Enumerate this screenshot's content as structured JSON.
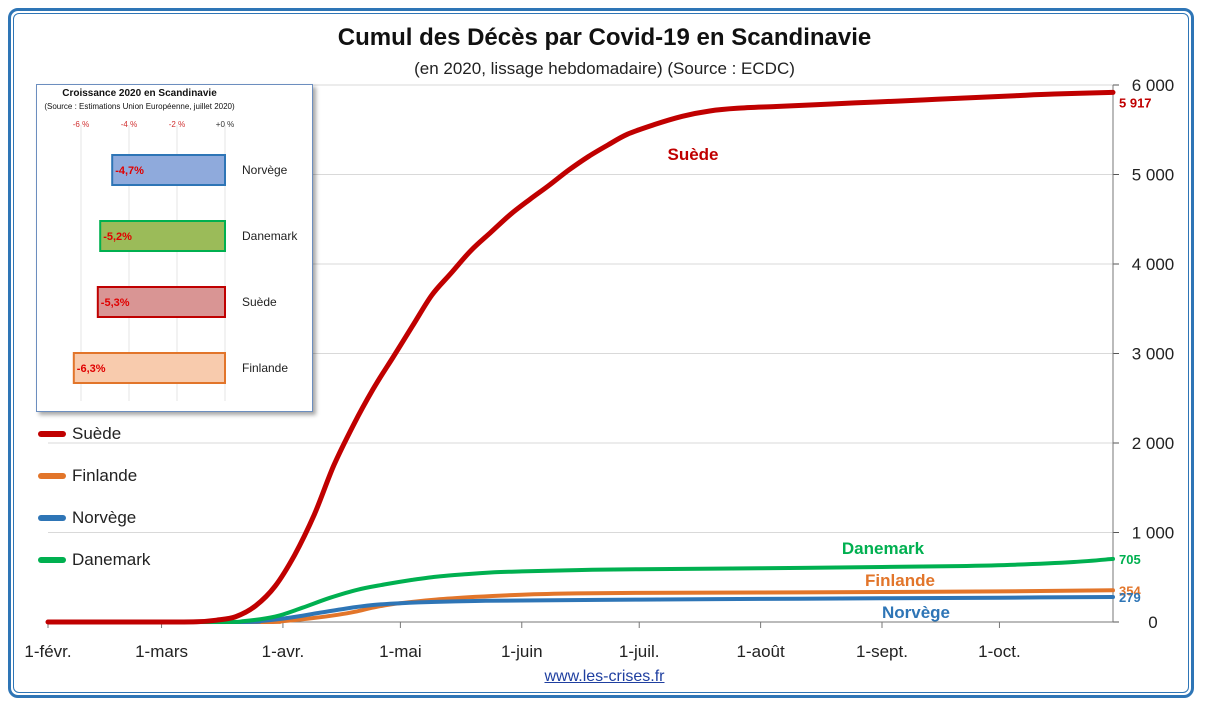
{
  "title": "Cumul des Décès par Covid-19 en Scandinavie",
  "subtitle": "(en 2020, lissage hebdomadaire) (Source : ECDC)",
  "source_link": "www.les-crises.fr",
  "colors": {
    "frame": "#2e75b6",
    "grid": "#d9d9d9"
  },
  "chart_data": [
    {
      "type": "line",
      "title": "Cumul des Décès par Covid-19 en Scandinavie",
      "subtitle": "(en 2020, lissage hebdomadaire) (Source : ECDC)",
      "x_tick_labels": [
        "1-févr.",
        "1-mars",
        "1-avr.",
        "1-mai",
        "1-juin",
        "1-juil.",
        "1-août",
        "1-sept.",
        "1-oct."
      ],
      "x_tick_dates": [
        "2020-02-01",
        "2020-03-01",
        "2020-04-01",
        "2020-05-01",
        "2020-06-01",
        "2020-07-01",
        "2020-08-01",
        "2020-09-01",
        "2020-10-01"
      ],
      "xlim": [
        "2020-02-01",
        "2020-10-30"
      ],
      "ylim": [
        0,
        6000
      ],
      "y_ticks": [
        0,
        1000,
        2000,
        3000,
        4000,
        5000,
        6000
      ],
      "y_tick_labels": [
        "0",
        "1 000",
        "2 000",
        "3 000",
        "4 000",
        "5 000",
        "6 000"
      ],
      "y_axis_side": "right",
      "grid": true,
      "legend": "left",
      "series": [
        {
          "name": "Suède",
          "color": "#c00000",
          "end_label": "5 917",
          "line_label": "Suède",
          "points": [
            [
              "2020-02-01",
              0
            ],
            [
              "2020-03-01",
              0
            ],
            [
              "2020-03-10",
              2
            ],
            [
              "2020-03-15",
              20
            ],
            [
              "2020-03-20",
              60
            ],
            [
              "2020-03-25",
              180
            ],
            [
              "2020-03-30",
              400
            ],
            [
              "2020-04-04",
              750
            ],
            [
              "2020-04-09",
              1200
            ],
            [
              "2020-04-14",
              1750
            ],
            [
              "2020-04-19",
              2200
            ],
            [
              "2020-04-24",
              2600
            ],
            [
              "2020-04-29",
              2950
            ],
            [
              "2020-05-04",
              3300
            ],
            [
              "2020-05-09",
              3650
            ],
            [
              "2020-05-14",
              3900
            ],
            [
              "2020-05-19",
              4150
            ],
            [
              "2020-05-24",
              4350
            ],
            [
              "2020-05-29",
              4550
            ],
            [
              "2020-06-03",
              4720
            ],
            [
              "2020-06-08",
              4880
            ],
            [
              "2020-06-13",
              5050
            ],
            [
              "2020-06-18",
              5200
            ],
            [
              "2020-06-23",
              5330
            ],
            [
              "2020-06-28",
              5450
            ],
            [
              "2020-07-05",
              5560
            ],
            [
              "2020-07-12",
              5650
            ],
            [
              "2020-07-19",
              5710
            ],
            [
              "2020-07-26",
              5740
            ],
            [
              "2020-08-05",
              5760
            ],
            [
              "2020-08-15",
              5780
            ],
            [
              "2020-08-25",
              5800
            ],
            [
              "2020-09-05",
              5820
            ],
            [
              "2020-09-15",
              5840
            ],
            [
              "2020-09-25",
              5860
            ],
            [
              "2020-10-05",
              5880
            ],
            [
              "2020-10-15",
              5900
            ],
            [
              "2020-10-30",
              5917
            ]
          ]
        },
        {
          "name": "Finlande",
          "color": "#e2752a",
          "end_label": "354",
          "line_label": "Finlande",
          "points": [
            [
              "2020-02-01",
              0
            ],
            [
              "2020-03-25",
              0
            ],
            [
              "2020-04-01",
              10
            ],
            [
              "2020-04-08",
              40
            ],
            [
              "2020-04-15",
              80
            ],
            [
              "2020-04-20",
              120
            ],
            [
              "2020-04-25",
              170
            ],
            [
              "2020-05-01",
              210
            ],
            [
              "2020-05-10",
              250
            ],
            [
              "2020-05-20",
              280
            ],
            [
              "2020-06-01",
              305
            ],
            [
              "2020-06-15",
              320
            ],
            [
              "2020-07-01",
              325
            ],
            [
              "2020-08-01",
              330
            ],
            [
              "2020-09-01",
              335
            ],
            [
              "2020-10-01",
              342
            ],
            [
              "2020-10-30",
              354
            ]
          ]
        },
        {
          "name": "Norvège",
          "color": "#2e75b6",
          "end_label": "279",
          "line_label": "Norvège",
          "points": [
            [
              "2020-02-01",
              0
            ],
            [
              "2020-03-20",
              0
            ],
            [
              "2020-03-27",
              15
            ],
            [
              "2020-04-03",
              50
            ],
            [
              "2020-04-10",
              100
            ],
            [
              "2020-04-17",
              150
            ],
            [
              "2020-04-24",
              190
            ],
            [
              "2020-05-01",
              210
            ],
            [
              "2020-05-10",
              225
            ],
            [
              "2020-05-20",
              235
            ],
            [
              "2020-06-01",
              240
            ],
            [
              "2020-07-01",
              250
            ],
            [
              "2020-08-01",
              258
            ],
            [
              "2020-09-01",
              265
            ],
            [
              "2020-10-01",
              272
            ],
            [
              "2020-10-30",
              279
            ]
          ]
        },
        {
          "name": "Danemark",
          "color": "#00b050",
          "end_label": "705",
          "line_label": "Danemark",
          "points": [
            [
              "2020-02-01",
              0
            ],
            [
              "2020-03-15",
              0
            ],
            [
              "2020-03-22",
              10
            ],
            [
              "2020-03-30",
              60
            ],
            [
              "2020-04-06",
              160
            ],
            [
              "2020-04-13",
              270
            ],
            [
              "2020-04-20",
              360
            ],
            [
              "2020-04-27",
              420
            ],
            [
              "2020-05-04",
              470
            ],
            [
              "2020-05-11",
              510
            ],
            [
              "2020-05-18",
              535
            ],
            [
              "2020-05-25",
              555
            ],
            [
              "2020-06-01",
              565
            ],
            [
              "2020-06-15",
              580
            ],
            [
              "2020-07-01",
              590
            ],
            [
              "2020-08-01",
              600
            ],
            [
              "2020-09-01",
              615
            ],
            [
              "2020-09-20",
              625
            ],
            [
              "2020-10-05",
              640
            ],
            [
              "2020-10-20",
              670
            ],
            [
              "2020-10-30",
              705
            ]
          ]
        }
      ]
    },
    {
      "type": "bar",
      "orientation": "horizontal",
      "title": "Croissance 2020 en Scandinavie",
      "subtitle": "(Source : Estimations Union Européenne, juillet 2020)",
      "categories": [
        "Norvège",
        "Danemark",
        "Suède",
        "Finlande"
      ],
      "values": [
        -4.7,
        -5.2,
        -5.3,
        -6.3
      ],
      "value_labels": [
        "-4,7%",
        "-5,2%",
        "-5,3%",
        "-6,3%"
      ],
      "colors": [
        {
          "fill": "#8faadc",
          "stroke": "#2e75b6"
        },
        {
          "fill": "#9bbb59",
          "stroke": "#00b050"
        },
        {
          "fill": "#d99594",
          "stroke": "#c00000"
        },
        {
          "fill": "#f8cbad",
          "stroke": "#e2752a"
        }
      ],
      "x_ticks": [
        -6,
        -4,
        -2,
        0
      ],
      "x_tick_labels": [
        "-6 %",
        "-4 %",
        "-2 %",
        "+0 %"
      ],
      "xlim": [
        -7,
        0
      ],
      "grid": true
    }
  ]
}
